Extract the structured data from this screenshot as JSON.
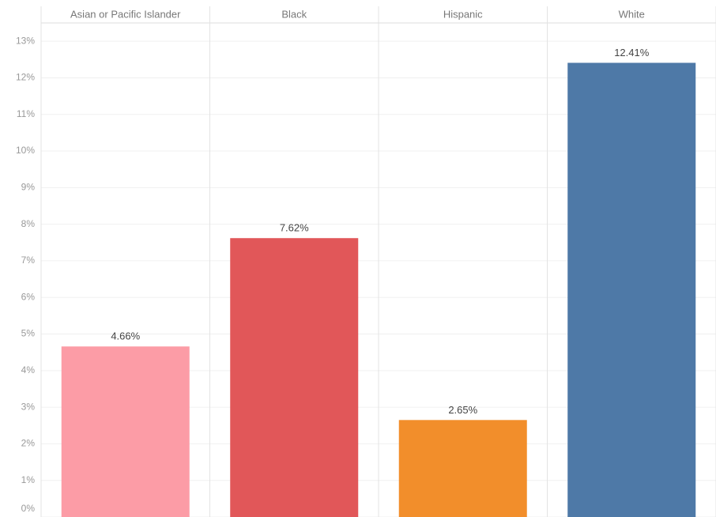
{
  "chart_data": {
    "type": "bar",
    "categories": [
      "Asian or Pacific Islander",
      "Black",
      "Hispanic",
      "White"
    ],
    "values": [
      4.66,
      7.62,
      2.65,
      12.41
    ],
    "value_labels": [
      "4.66%",
      "7.62%",
      "2.65%",
      "12.41%"
    ],
    "colors": [
      "#fc9ca6",
      "#e15759",
      "#f28e2b",
      "#4e79a7"
    ],
    "ylim": [
      0,
      13.5
    ],
    "yticks": [
      {
        "value": 0,
        "label": "0%"
      },
      {
        "value": 1,
        "label": "1%"
      },
      {
        "value": 2,
        "label": "2%"
      },
      {
        "value": 3,
        "label": "3%"
      },
      {
        "value": 4,
        "label": "4%"
      },
      {
        "value": 5,
        "label": "5%"
      },
      {
        "value": 6,
        "label": "6%"
      },
      {
        "value": 7,
        "label": "7%"
      },
      {
        "value": 8,
        "label": "8%"
      },
      {
        "value": 9,
        "label": "9%"
      },
      {
        "value": 10,
        "label": "10%"
      },
      {
        "value": 11,
        "label": "11%"
      },
      {
        "value": 12,
        "label": "12%"
      },
      {
        "value": 13,
        "label": "13%"
      }
    ],
    "grid": true
  }
}
